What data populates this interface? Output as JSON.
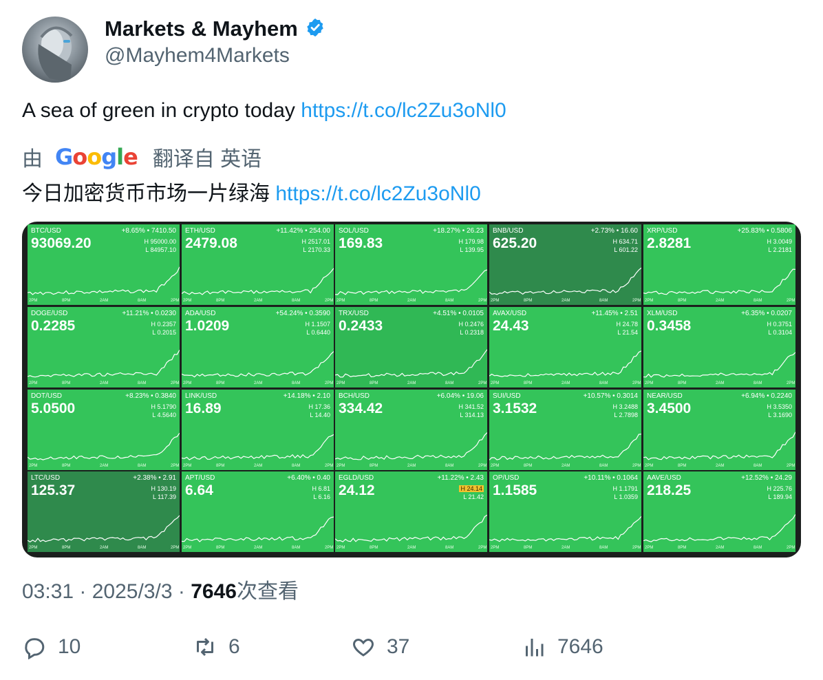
{
  "author": {
    "display_name": "Markets & Mayhem",
    "handle": "@Mayhem4Markets",
    "verified_icon": "verified-badge-icon",
    "brand_color": "#1d9bf0"
  },
  "tweet": {
    "text": "A sea of green in crypto today",
    "link": "https://t.co/lc2Zu3oNl0"
  },
  "translation": {
    "prefix": "由",
    "provider": "Google",
    "suffix": "翻译自 英语",
    "text": "今日加密货币市场一片绿海",
    "link": "https://t.co/lc2Zu3oNl0"
  },
  "tiles": [
    {
      "symbol": "BTC/USD",
      "change": "+8.65% • 7410.50",
      "price": "93069.20",
      "high": "H 95000.00",
      "low": "L 84957.10",
      "shade": "green"
    },
    {
      "symbol": "ETH/USD",
      "change": "+11.42% • 254.00",
      "price": "2479.08",
      "high": "H 2517.01",
      "low": "L 2170.33",
      "shade": "green"
    },
    {
      "symbol": "SOL/USD",
      "change": "+18.27% • 26.23",
      "price": "169.83",
      "high": "H 179.98",
      "low": "L 139.95",
      "shade": "green"
    },
    {
      "symbol": "BNB/USD",
      "change": "+2.73% • 16.60",
      "price": "625.20",
      "high": "H 634.71",
      "low": "L 601.22",
      "shade": "dark"
    },
    {
      "symbol": "XRP/USD",
      "change": "+25.83% • 0.5806",
      "price": "2.8281",
      "high": "H 3.0049",
      "low": "L 2.2181",
      "shade": "green"
    },
    {
      "symbol": "DOGE/USD",
      "change": "+11.21% • 0.0230",
      "price": "0.2285",
      "high": "H 0.2357",
      "low": "L 0.2015",
      "shade": "green"
    },
    {
      "symbol": "ADA/USD",
      "change": "+54.24% • 0.3590",
      "price": "1.0209",
      "high": "H 1.1507",
      "low": "L 0.6440",
      "shade": "green"
    },
    {
      "symbol": "TRX/USD",
      "change": "+4.51% • 0.0105",
      "price": "0.2433",
      "high": "H 0.2476",
      "low": "L 0.2318",
      "shade": "mid"
    },
    {
      "symbol": "AVAX/USD",
      "change": "+11.45% • 2.51",
      "price": "24.43",
      "high": "H 24.78",
      "low": "L 21.54",
      "shade": "green"
    },
    {
      "symbol": "XLM/USD",
      "change": "+6.35% • 0.0207",
      "price": "0.3458",
      "high": "H 0.3751",
      "low": "L 0.3104",
      "shade": "green"
    },
    {
      "symbol": "DOT/USD",
      "change": "+8.23% • 0.3840",
      "price": "5.0500",
      "high": "H 5.1790",
      "low": "L 4.5640",
      "shade": "green"
    },
    {
      "symbol": "LINK/USD",
      "change": "+14.18% • 2.10",
      "price": "16.89",
      "high": "H 17.36",
      "low": "L 14.40",
      "shade": "green"
    },
    {
      "symbol": "BCH/USD",
      "change": "+6.04% • 19.06",
      "price": "334.42",
      "high": "H 341.52",
      "low": "L 314.13",
      "shade": "green"
    },
    {
      "symbol": "SUI/USD",
      "change": "+10.57% • 0.3014",
      "price": "3.1532",
      "high": "H 3.2488",
      "low": "L 2.7898",
      "shade": "green"
    },
    {
      "symbol": "NEAR/USD",
      "change": "+6.94% • 0.2240",
      "price": "3.4500",
      "high": "H 3.5350",
      "low": "L 3.1690",
      "shade": "green"
    },
    {
      "symbol": "LTC/USD",
      "change": "+2.38% • 2.91",
      "price": "125.37",
      "high": "H 130.19",
      "low": "L 117.39",
      "shade": "dark"
    },
    {
      "symbol": "APT/USD",
      "change": "+6.40% • 0.40",
      "price": "6.64",
      "high": "H 6.81",
      "low": "L 6.16",
      "shade": "green"
    },
    {
      "symbol": "EGLD/USD",
      "change": "+11.22% • 2.43",
      "price": "24.12",
      "high": "H 24.14",
      "low": "L 21.42",
      "shade": "green",
      "high_highlight": true
    },
    {
      "symbol": "OP/USD",
      "change": "+10.11% • 0.1064",
      "price": "1.1585",
      "high": "H 1.1791",
      "low": "L 1.0359",
      "shade": "green"
    },
    {
      "symbol": "AAVE/USD",
      "change": "+12.52% • 24.29",
      "price": "218.25",
      "high": "H 225.76",
      "low": "L 189.94",
      "shade": "green"
    }
  ],
  "axis_labels": [
    "2PM",
    "8PM",
    "2AM",
    "8AM",
    "2PM"
  ],
  "meta": {
    "time": "03:31",
    "date": "2025/3/3",
    "views_count": "7646",
    "views_label": "次查看"
  },
  "actions": {
    "replies": "10",
    "reposts": "6",
    "likes": "37",
    "views": "7646"
  }
}
